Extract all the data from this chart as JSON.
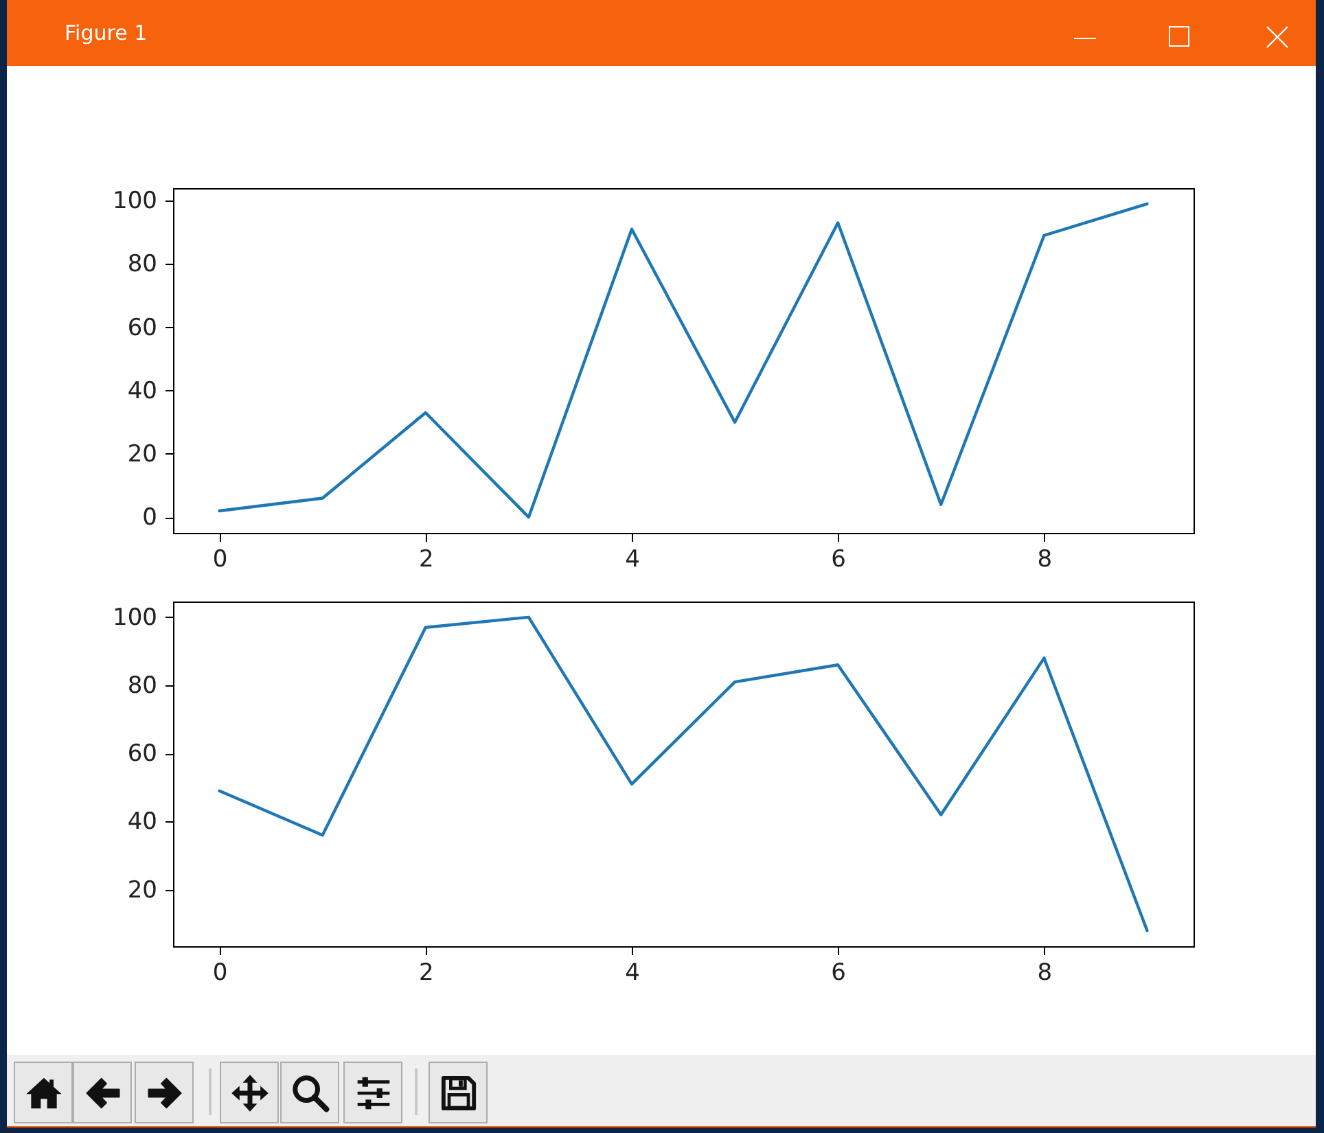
{
  "chart_data": [
    {
      "type": "line",
      "x": [
        0,
        1,
        2,
        3,
        4,
        5,
        6,
        7,
        8,
        9
      ],
      "values": [
        2,
        6,
        33,
        0,
        91,
        30,
        93,
        4,
        89,
        99
      ],
      "color": "#1f77b4",
      "xlim": [
        -0.45,
        9.45
      ],
      "ylim": [
        -4.95,
        103.95
      ],
      "xticks": [
        0,
        2,
        4,
        6,
        8
      ],
      "yticks": [
        0,
        20,
        40,
        60,
        80,
        100
      ],
      "grid": false,
      "annotations": [
        "Figure 1"
      ]
    },
    {
      "type": "line",
      "x": [
        0,
        1,
        2,
        3,
        4,
        5,
        6,
        7,
        8,
        9
      ],
      "values": [
        49,
        36,
        97,
        100,
        51,
        81,
        86,
        42,
        88,
        8
      ],
      "color": "#1f77b4",
      "xlim": [
        -0.45,
        9.45
      ],
      "ylim": [
        3.4,
        104.6
      ],
      "xticks": [
        0,
        2,
        4,
        6,
        8
      ],
      "yticks": [
        20,
        40,
        60,
        80,
        100
      ],
      "grid": false
    }
  ]
}
